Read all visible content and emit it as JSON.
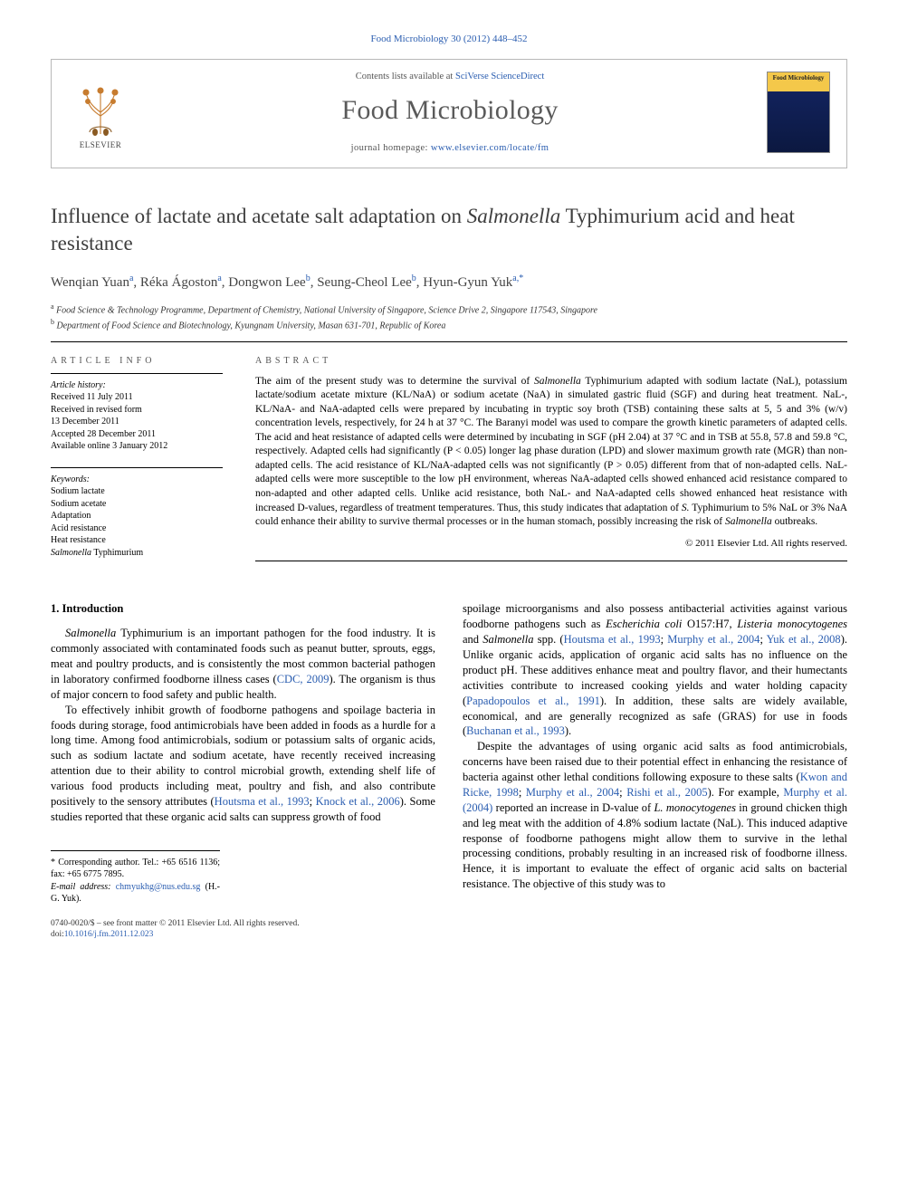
{
  "header": {
    "reference": "Food Microbiology 30 (2012) 448–452",
    "contents_line_prefix": "Contents lists available at ",
    "contents_link": "SciVerse ScienceDirect",
    "journal_title": "Food Microbiology",
    "homepage_prefix": "journal homepage: ",
    "homepage_url": "www.elsevier.com/locate/fm",
    "elsevier_label": "ELSEVIER",
    "cover_label": "Food Microbiology"
  },
  "title_html": "Influence of lactate and acetate salt adaptation on <em>Salmonella</em> Typhimurium acid and heat resistance",
  "authors": [
    {
      "name": "Wenqian Yuan",
      "aff": "a"
    },
    {
      "name": "Réka Ágoston",
      "aff": "a"
    },
    {
      "name": "Dongwon Lee",
      "aff": "b"
    },
    {
      "name": "Seung-Cheol Lee",
      "aff": "b"
    },
    {
      "name": "Hyun-Gyun Yuk",
      "aff": "a,*"
    }
  ],
  "affiliations": [
    {
      "key": "a",
      "text": "Food Science & Technology Programme, Department of Chemistry, National University of Singapore, Science Drive 2, Singapore 117543, Singapore"
    },
    {
      "key": "b",
      "text": "Department of Food Science and Biotechnology, Kyungnam University, Masan 631-701, Republic of Korea"
    }
  ],
  "article_info": {
    "heading": "ARTICLE INFO",
    "history_label": "Article history:",
    "history": [
      "Received 11 July 2011",
      "Received in revised form",
      "13 December 2011",
      "Accepted 28 December 2011",
      "Available online 3 January 2012"
    ],
    "keywords_label": "Keywords:",
    "keywords": [
      "Sodium lactate",
      "Sodium acetate",
      "Adaptation",
      "Acid resistance",
      "Heat resistance",
      "Salmonella Typhimurium"
    ]
  },
  "abstract": {
    "heading": "ABSTRACT",
    "text_html": "The aim of the present study was to determine the survival of <em>Salmonella</em> Typhimurium adapted with sodium lactate (NaL), potassium lactate/sodium acetate mixture (KL/NaA) or sodium acetate (NaA) in simulated gastric fluid (SGF) and during heat treatment. NaL-, KL/NaA- and NaA-adapted cells were prepared by incubating in tryptic soy broth (TSB) containing these salts at 5, 5 and 3% (w/v) concentration levels, respectively, for 24 h at 37 °C. The Baranyi model was used to compare the growth kinetic parameters of adapted cells. The acid and heat resistance of adapted cells were determined by incubating in SGF (pH 2.04) at 37 °C and in TSB at 55.8, 57.8 and 59.8 °C, respectively. Adapted cells had significantly (P < 0.05) longer lag phase duration (LPD) and slower maximum growth rate (MGR) than non-adapted cells. The acid resistance of KL/NaA-adapted cells was not significantly (P > 0.05) different from that of non-adapted cells. NaL-adapted cells were more susceptible to the low pH environment, whereas NaA-adapted cells showed enhanced acid resistance compared to non-adapted and other adapted cells. Unlike acid resistance, both NaL- and NaA-adapted cells showed enhanced heat resistance with increased D-values, regardless of treatment temperatures. Thus, this study indicates that adaptation of <em>S.</em> Typhimurium to 5% NaL or 3% NaA could enhance their ability to survive thermal processes or in the human stomach, possibly increasing the risk of <em>Salmonella</em> outbreaks.",
    "copyright": "© 2011 Elsevier Ltd. All rights reserved."
  },
  "body": {
    "sec1_title": "1. Introduction",
    "left_paras_html": [
      "<em>Salmonella</em> Typhimurium is an important pathogen for the food industry. It is commonly associated with contaminated foods such as peanut butter, sprouts, eggs, meat and poultry products, and is consistently the most common bacterial pathogen in laboratory confirmed foodborne illness cases (<a class=\"link\" href=\"#\">CDC, 2009</a>). The organism is thus of major concern to food safety and public health.",
      "To effectively inhibit growth of foodborne pathogens and spoilage bacteria in foods during storage, food antimicrobials have been added in foods as a hurdle for a long time. Among food antimicrobials, sodium or potassium salts of organic acids, such as sodium lactate and sodium acetate, have recently received increasing attention due to their ability to control microbial growth, extending shelf life of various food products including meat, poultry and fish, and also contribute positively to the sensory attributes (<a class=\"link\" href=\"#\">Houtsma et al., 1993</a>; <a class=\"link\" href=\"#\">Knock et al., 2006</a>). Some studies reported that these organic acid salts can suppress growth of food"
    ],
    "right_paras_html": [
      "spoilage microorganisms and also possess antibacterial activities against various foodborne pathogens such as <em>Escherichia coli</em> O157:H7, <em>Listeria monocytogenes</em> and <em>Salmonella</em> spp. (<a class=\"link\" href=\"#\">Houtsma et al., 1993</a>; <a class=\"link\" href=\"#\">Murphy et al., 2004</a>; <a class=\"link\" href=\"#\">Yuk et al., 2008</a>). Unlike organic acids, application of organic acid salts has no influence on the product pH. These additives enhance meat and poultry flavor, and their humectants activities contribute to increased cooking yields and water holding capacity (<a class=\"link\" href=\"#\">Papadopoulos et al., 1991</a>). In addition, these salts are widely available, economical, and are generally recognized as safe (GRAS) for use in foods (<a class=\"link\" href=\"#\">Buchanan et al., 1993</a>).",
      "Despite the advantages of using organic acid salts as food antimicrobials, concerns have been raised due to their potential effect in enhancing the resistance of bacteria against other lethal conditions following exposure to these salts (<a class=\"link\" href=\"#\">Kwon and Ricke, 1998</a>; <a class=\"link\" href=\"#\">Murphy et al., 2004</a>; <a class=\"link\" href=\"#\">Rishi et al., 2005</a>). For example, <a class=\"link\" href=\"#\">Murphy et al. (2004)</a> reported an increase in D-value of <em>L. monocytogenes</em> in ground chicken thigh and leg meat with the addition of 4.8% sodium lactate (NaL). This induced adaptive response of foodborne pathogens might allow them to survive in the lethal processing conditions, probably resulting in an increased risk of foodborne illness. Hence, it is important to evaluate the effect of organic acid salts on bacterial resistance. The objective of this study was to"
    ]
  },
  "footer": {
    "corr_line": "* Corresponding author. Tel.: +65 6516 1136; fax: +65 6775 7895.",
    "email_label": "E-mail address:",
    "email": "chmyukhg@nus.edu.sg",
    "email_name": "(H.-G. Yuk).",
    "issn_line": "0740-0020/$ – see front matter © 2011 Elsevier Ltd. All rights reserved.",
    "doi_prefix": "doi:",
    "doi": "10.1016/j.fm.2011.12.023"
  },
  "colors": {
    "link": "#2a5db0",
    "rule": "#000000",
    "muted": "#555555"
  }
}
